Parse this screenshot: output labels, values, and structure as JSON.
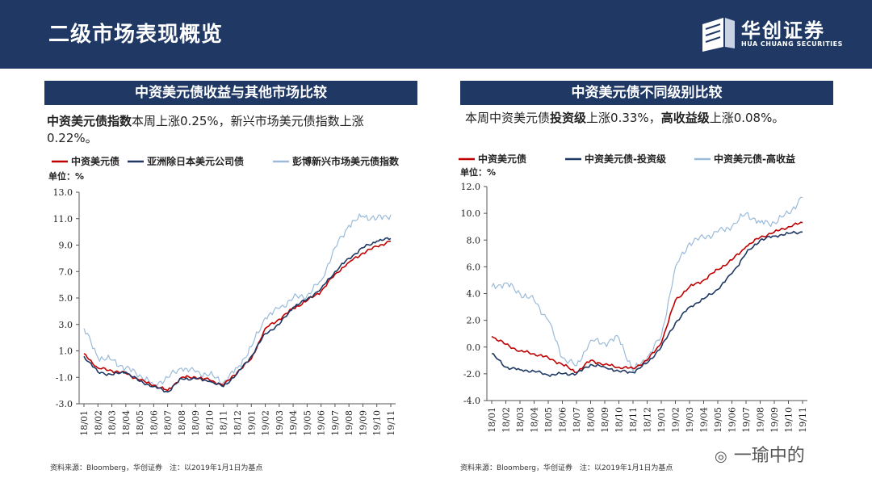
{
  "header": {
    "title": "二级市场表现概览",
    "brand_cn": "华创证券",
    "brand_en": "HUA CHUANG SECURITIES"
  },
  "left": {
    "section_title": "中资美元债收益与其他市场比较",
    "desc_bold": "中资美元债指数",
    "desc_rest": "本周上涨0.25%，新兴市场美元债指数上涨0.22%。",
    "unit": "单位：%",
    "source": "资料来源：Bloomberg，华创证券　注：以2019年1月1日为基点"
  },
  "right": {
    "section_title": "中资美元债不同级别比较",
    "desc_p1": "本周中资美元债",
    "desc_b1": "投资级",
    "desc_p2": "上涨0.33%，",
    "desc_b2": "高收益级",
    "desc_p3": "上涨0.08%。",
    "unit": "单位：%",
    "source": "资料来源：Bloomberg，华创证券　注：以2019年1月1日为基点"
  },
  "watermark": "一瑜中的",
  "colors": {
    "navy": "#1f3864",
    "red": "#c00000",
    "dark": "#1f3864",
    "light": "#9bbbd9"
  },
  "chart_data": [
    {
      "type": "line",
      "title": "中资美元债收益与其他市场比较",
      "ylabel": "单位：%",
      "ylim": [
        -3.0,
        13.0
      ],
      "yticks": [
        "13.0",
        "11.0",
        "9.0",
        "7.0",
        "5.0",
        "3.0",
        "1.0",
        "-1.0",
        "-3.0"
      ],
      "ytick_values": [
        13,
        11,
        9,
        7,
        5,
        3,
        1,
        -1,
        -3
      ],
      "categories": [
        "18/01",
        "18/02",
        "18/03",
        "18/04",
        "18/05",
        "18/06",
        "18/07",
        "18/08",
        "18/09",
        "18/10",
        "18/11",
        "18/12",
        "19/01",
        "19/02",
        "19/03",
        "19/04",
        "19/05",
        "19/06",
        "19/07",
        "19/08",
        "19/09",
        "19/10",
        "19/11"
      ],
      "series": [
        {
          "name": "中资美元债",
          "color_key": "red",
          "values": [
            0.8,
            -0.3,
            -0.5,
            -0.7,
            -1.2,
            -1.6,
            -2.0,
            -1.0,
            -1.0,
            -1.2,
            -1.6,
            -0.6,
            0.4,
            2.7,
            3.4,
            4.2,
            4.8,
            5.5,
            6.8,
            7.7,
            8.4,
            8.9,
            9.3
          ]
        },
        {
          "name": "亚洲除日本美元公司债",
          "color_key": "dark",
          "values": [
            0.6,
            -0.6,
            -0.8,
            -0.6,
            -1.3,
            -1.7,
            -2.1,
            -1.1,
            -1.1,
            -1.3,
            -1.7,
            -0.7,
            0.6,
            2.3,
            3.0,
            4.3,
            4.9,
            5.7,
            7.0,
            8.0,
            8.8,
            9.3,
            9.5
          ]
        },
        {
          "name": "彭博新兴市场美元债指数",
          "color_key": "light",
          "values": [
            2.7,
            0.5,
            0.3,
            -0.3,
            -0.8,
            -1.6,
            -1.0,
            -0.3,
            -0.6,
            -0.8,
            -1.4,
            -0.3,
            1.3,
            3.5,
            4.2,
            5.0,
            5.2,
            6.3,
            8.8,
            10.5,
            11.2,
            11.0,
            11.3
          ]
        }
      ]
    },
    {
      "type": "line",
      "title": "中资美元债不同级别比较",
      "ylabel": "单位：%",
      "ylim": [
        -4.0,
        12.0
      ],
      "yticks": [
        "12.0",
        "10.0",
        "8.0",
        "6.0",
        "4.0",
        "2.0",
        "0.0",
        "-2.0",
        "-4.0"
      ],
      "ytick_values": [
        12,
        10,
        8,
        6,
        4,
        2,
        0,
        -2,
        -4
      ],
      "categories": [
        "18/01",
        "18/02",
        "18/03",
        "18/04",
        "18/05",
        "18/06",
        "18/07",
        "18/08",
        "18/09",
        "18/10",
        "18/11",
        "18/12",
        "19/01",
        "19/02",
        "19/03",
        "19/04",
        "19/05",
        "19/06",
        "19/07",
        "19/08",
        "19/09",
        "19/10",
        "19/11"
      ],
      "series": [
        {
          "name": "中资美元债",
          "color_key": "red",
          "values": [
            0.8,
            0.2,
            -0.3,
            -0.5,
            -0.8,
            -1.3,
            -1.9,
            -1.0,
            -1.3,
            -1.5,
            -1.6,
            -1.0,
            0.3,
            3.5,
            4.5,
            5.0,
            5.8,
            6.5,
            7.5,
            8.2,
            8.6,
            9.0,
            9.3
          ]
        },
        {
          "name": "中资美元债-投资级",
          "color_key": "dark",
          "values": [
            -0.5,
            -1.5,
            -1.7,
            -1.8,
            -2.1,
            -2.0,
            -2.0,
            -1.3,
            -1.5,
            -1.8,
            -1.9,
            -1.2,
            0.0,
            1.8,
            3.0,
            3.6,
            4.3,
            5.5,
            7.0,
            8.0,
            8.3,
            8.5,
            8.6
          ]
        },
        {
          "name": "中资美元债-高收益",
          "color_key": "light",
          "values": [
            4.5,
            4.8,
            4.0,
            3.5,
            2.0,
            -0.8,
            -1.4,
            0.5,
            0.3,
            0.7,
            -1.8,
            -0.8,
            0.8,
            6.0,
            7.8,
            8.2,
            8.6,
            9.0,
            10.0,
            9.3,
            9.3,
            10.0,
            11.2
          ]
        }
      ]
    }
  ]
}
